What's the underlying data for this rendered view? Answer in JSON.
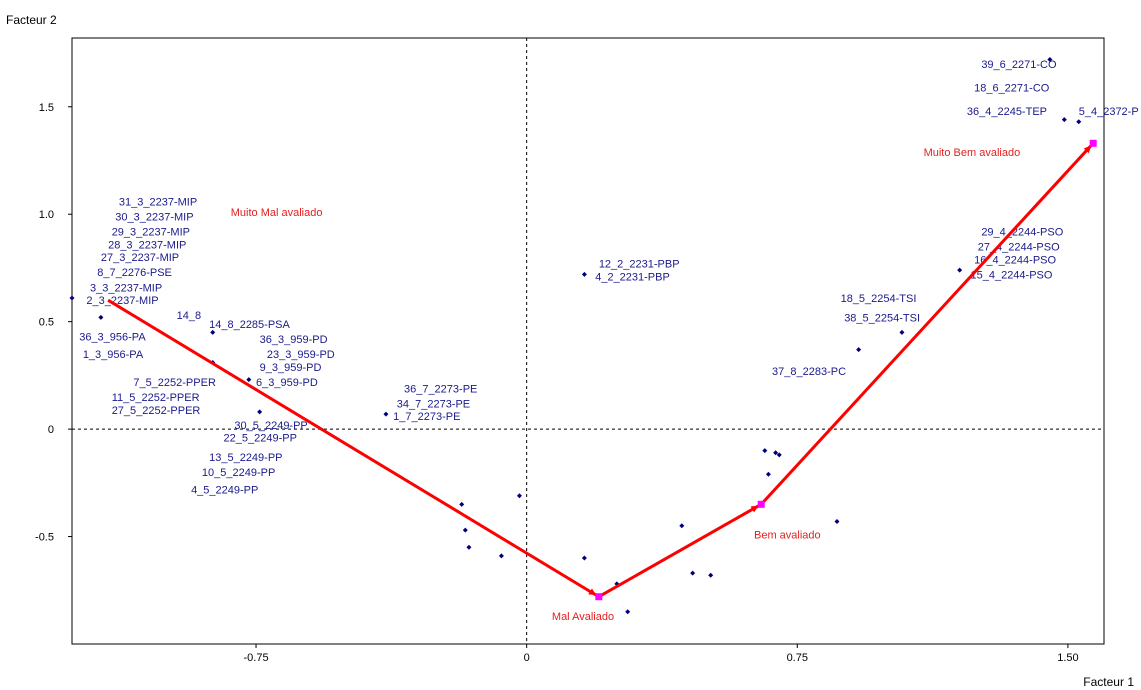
{
  "chart_data": {
    "type": "scatter",
    "xlabel": "Facteur 1",
    "ylabel": "Facteur 2",
    "xlim": [
      -1.26,
      1.6
    ],
    "ylim": [
      -1.0,
      1.82
    ],
    "x_ticks": [
      {
        "value": -0.75,
        "label": "-0.75"
      },
      {
        "value": 0,
        "label": "0"
      },
      {
        "value": 0.75,
        "label": "0.75"
      },
      {
        "value": 1.5,
        "label": "1.50"
      }
    ],
    "y_ticks": [
      {
        "value": -0.5,
        "label": "-0.5"
      },
      {
        "value": 0,
        "label": "0"
      },
      {
        "value": 0.5,
        "label": "0.5"
      },
      {
        "value": 1.0,
        "label": "1.0"
      },
      {
        "value": 1.5,
        "label": "1.5"
      }
    ],
    "colors": {
      "points": "#00007f",
      "labels": "#1a1a8c",
      "trajectory": "#ff0000",
      "markers": "#ff00ff",
      "annotations": "#e62020",
      "frame": "#000000"
    },
    "labels": [
      {
        "text": "39_6_2271-CO",
        "x": 1.26,
        "y": 1.7
      },
      {
        "text": "18_6_2271-CO",
        "x": 1.24,
        "y": 1.59
      },
      {
        "text": "36_4_2245-TEP",
        "x": 1.22,
        "y": 1.48
      },
      {
        "text": "5_4_2372-P",
        "x": 1.53,
        "y": 1.48
      },
      {
        "text": "31_3_2237-MIP",
        "x": -1.13,
        "y": 1.06
      },
      {
        "text": "30_3_2237-MIP",
        "x": -1.14,
        "y": 0.99
      },
      {
        "text": "29_3_2237-MIP",
        "x": -1.15,
        "y": 0.92
      },
      {
        "text": "28_3_2237-MIP",
        "x": -1.16,
        "y": 0.86
      },
      {
        "text": "27_3_2237-MIP",
        "x": -1.18,
        "y": 0.8
      },
      {
        "text": "8_7_2276-PSE",
        "x": -1.19,
        "y": 0.73
      },
      {
        "text": "3_3_2237-MIP",
        "x": -1.21,
        "y": 0.66
      },
      {
        "text": "2_3_2237-MIP",
        "x": -1.22,
        "y": 0.6
      },
      {
        "text": "14_8",
        "x": -0.97,
        "y": 0.53
      },
      {
        "text": "14_8_2285-PSA",
        "x": -0.88,
        "y": 0.49
      },
      {
        "text": "36_3_956-PA",
        "x": -1.24,
        "y": 0.43
      },
      {
        "text": "36_3_959-PD",
        "x": -0.74,
        "y": 0.42
      },
      {
        "text": "1_3_956-PA",
        "x": -1.23,
        "y": 0.35
      },
      {
        "text": "23_3_959-PD",
        "x": -0.72,
        "y": 0.35
      },
      {
        "text": "9_3_959-PD",
        "x": -0.74,
        "y": 0.29
      },
      {
        "text": "7_5_2252-PPER",
        "x": -1.09,
        "y": 0.22
      },
      {
        "text": "6_3_959-PD",
        "x": -0.75,
        "y": 0.22
      },
      {
        "text": "36_7_2273-PE",
        "x": -0.34,
        "y": 0.19
      },
      {
        "text": "11_5_2252-PPER",
        "x": -1.15,
        "y": 0.15
      },
      {
        "text": "34_7_2273-PE",
        "x": -0.36,
        "y": 0.12
      },
      {
        "text": "27_5_2252-PPER",
        "x": -1.15,
        "y": 0.09
      },
      {
        "text": "1_7_2273-PE",
        "x": -0.37,
        "y": 0.06
      },
      {
        "text": "30_5_2249-PP",
        "x": -0.81,
        "y": 0.02
      },
      {
        "text": "22_5_2249-PP",
        "x": -0.84,
        "y": -0.04
      },
      {
        "text": "13_5_2249-PP",
        "x": -0.88,
        "y": -0.13
      },
      {
        "text": "10_5_2249-PP",
        "x": -0.9,
        "y": -0.2
      },
      {
        "text": "4_5_2249-PP",
        "x": -0.93,
        "y": -0.28
      },
      {
        "text": "12_2_2231-PBP",
        "x": 0.2,
        "y": 0.77
      },
      {
        "text": "4_2_2231-PBP",
        "x": 0.19,
        "y": 0.71
      },
      {
        "text": "18_5_2254-TSI",
        "x": 0.87,
        "y": 0.61
      },
      {
        "text": "38_5_2254-TSI",
        "x": 0.88,
        "y": 0.52
      },
      {
        "text": "37_8_2283-PC",
        "x": 0.68,
        "y": 0.27
      },
      {
        "text": "29_4_2244-PSO",
        "x": 1.26,
        "y": 0.92
      },
      {
        "text": "27_4_2244-PSO",
        "x": 1.25,
        "y": 0.85
      },
      {
        "text": "16_4_2244-PSO",
        "x": 1.24,
        "y": 0.79
      },
      {
        "text": "15_4_2244-PSO",
        "x": 1.23,
        "y": 0.72
      }
    ],
    "points": [
      {
        "x": -1.26,
        "y": 0.61
      },
      {
        "x": -1.18,
        "y": 0.52
      },
      {
        "x": -0.87,
        "y": 0.45
      },
      {
        "x": -0.87,
        "y": 0.31
      },
      {
        "x": -0.77,
        "y": 0.23
      },
      {
        "x": -0.74,
        "y": 0.08
      },
      {
        "x": -0.39,
        "y": 0.07
      },
      {
        "x": 0.16,
        "y": 0.72
      },
      {
        "x": 1.45,
        "y": 1.72
      },
      {
        "x": 1.49,
        "y": 1.44
      },
      {
        "x": 1.53,
        "y": 1.43
      },
      {
        "x": 1.2,
        "y": 0.74
      },
      {
        "x": 1.04,
        "y": 0.45
      },
      {
        "x": 0.92,
        "y": 0.37
      },
      {
        "x": -0.02,
        "y": -0.31
      },
      {
        "x": -0.18,
        "y": -0.35
      },
      {
        "x": -0.17,
        "y": -0.47
      },
      {
        "x": -0.16,
        "y": -0.55
      },
      {
        "x": -0.07,
        "y": -0.59
      },
      {
        "x": 0.16,
        "y": -0.6
      },
      {
        "x": 0.25,
        "y": -0.72
      },
      {
        "x": 0.28,
        "y": -0.85
      },
      {
        "x": 0.43,
        "y": -0.45
      },
      {
        "x": 0.46,
        "y": -0.67
      },
      {
        "x": 0.51,
        "y": -0.68
      },
      {
        "x": 0.66,
        "y": -0.1
      },
      {
        "x": 0.69,
        "y": -0.11
      },
      {
        "x": 0.7,
        "y": -0.12
      },
      {
        "x": 0.67,
        "y": -0.21
      },
      {
        "x": 0.65,
        "y": -0.35
      },
      {
        "x": 0.86,
        "y": -0.43
      }
    ],
    "trajectory": [
      {
        "x": -1.16,
        "y": 0.6
      },
      {
        "x": 0.2,
        "y": -0.78
      },
      {
        "x": 0.65,
        "y": -0.35
      },
      {
        "x": 1.57,
        "y": 1.33
      }
    ],
    "annotations": [
      {
        "text": "Muito Mal avaliado",
        "x": -0.82,
        "y": 1.01
      },
      {
        "text": "Mal Avaliado",
        "x": 0.07,
        "y": -0.87
      },
      {
        "text": "Bem avaliado",
        "x": 0.63,
        "y": -0.49
      },
      {
        "text": "Muito Bem avaliado",
        "x": 1.1,
        "y": 1.29
      }
    ]
  }
}
